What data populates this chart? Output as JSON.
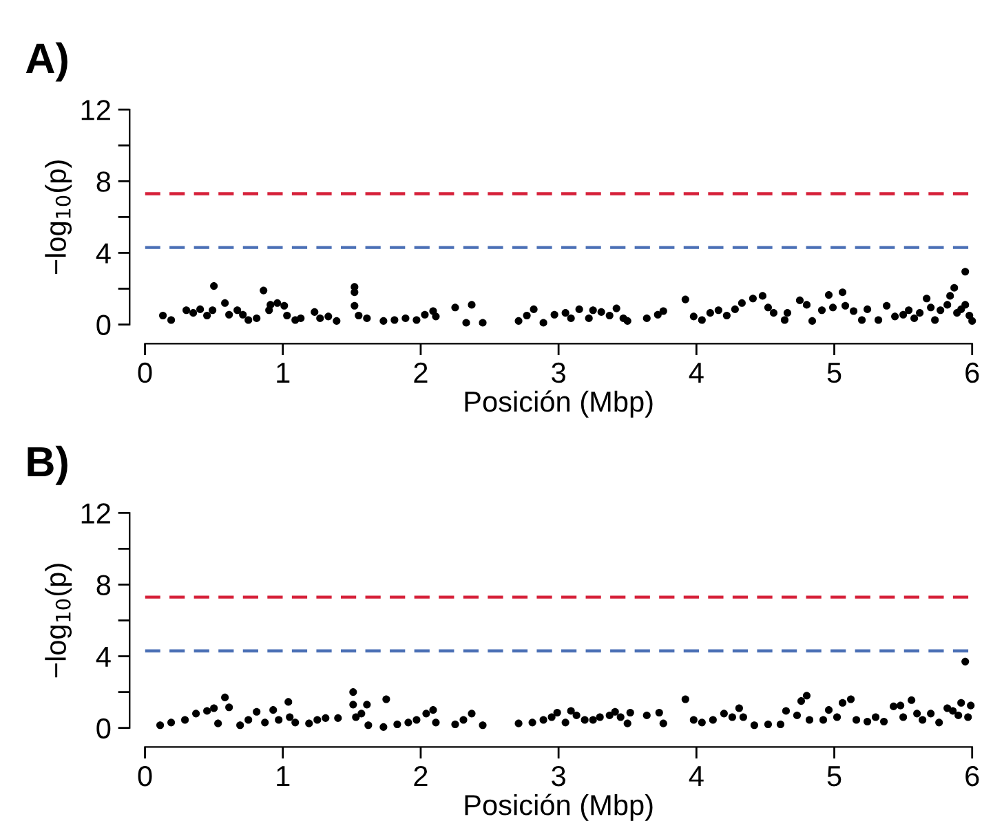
{
  "chart_data": [
    {
      "type": "scatter",
      "title": "A)",
      "xlabel": "Posición (Mbp)",
      "ylabel": "−log$_{10}$(p)",
      "xlim": [
        0,
        6
      ],
      "ylim": [
        0,
        12
      ],
      "xticks": [
        0,
        1,
        2,
        3,
        4,
        5,
        6
      ],
      "yticks": [
        0,
        {
          "value": 2,
          "label": null
        },
        4,
        {
          "value": 6,
          "label": null
        },
        8,
        {
          "value": 10,
          "label": null
        },
        12
      ],
      "grid": false,
      "legend": false,
      "marker": "circle",
      "ref_lines": [
        {
          "axis": "y",
          "value": 7.3,
          "color": "#d6213a",
          "line_style": "dashed"
        },
        {
          "axis": "y",
          "value": 4.3,
          "color": "#4a6fb5",
          "line_style": "dashed"
        }
      ],
      "series": [
        {
          "color": "#000000",
          "x": [
            0.13,
            0.19,
            0.3,
            0.35,
            0.4,
            0.45,
            0.5,
            0.49,
            0.58,
            0.61,
            0.67,
            0.71,
            0.75,
            0.81,
            0.86,
            0.9,
            0.91,
            0.96,
            1.01,
            1.03,
            1.09,
            1.13,
            1.23,
            1.27,
            1.33,
            1.39,
            1.52,
            1.52,
            1.52,
            1.55,
            1.61,
            1.73,
            1.81,
            1.89,
            1.97,
            2.03,
            2.09,
            2.11,
            2.25,
            2.33,
            2.37,
            2.45,
            2.71,
            2.77,
            2.82,
            2.89,
            2.97,
            3.05,
            3.09,
            3.15,
            3.22,
            3.25,
            3.31,
            3.37,
            3.42,
            3.47,
            3.5,
            3.64,
            3.72,
            3.76,
            3.92,
            3.98,
            4.04,
            4.1,
            4.16,
            4.22,
            4.28,
            4.33,
            4.41,
            4.48,
            4.52,
            4.56,
            4.64,
            4.66,
            4.75,
            4.8,
            4.84,
            4.91,
            4.96,
            4.99,
            5.06,
            5.08,
            5.14,
            5.2,
            5.24,
            5.32,
            5.38,
            5.44,
            5.5,
            5.54,
            5.58,
            5.62,
            5.67,
            5.7,
            5.73,
            5.77,
            5.82,
            5.84,
            5.87,
            5.89,
            5.92,
            5.95,
            5.95,
            5.98,
            6.0
          ],
          "values": [
            0.5,
            0.25,
            0.8,
            0.65,
            0.85,
            0.5,
            2.15,
            0.8,
            1.2,
            0.55,
            0.8,
            0.55,
            0.25,
            0.35,
            1.9,
            0.8,
            1.1,
            1.2,
            1.05,
            0.5,
            0.25,
            0.35,
            0.7,
            0.35,
            0.45,
            0.2,
            2.1,
            1.8,
            1.05,
            0.5,
            0.35,
            0.2,
            0.25,
            0.35,
            0.25,
            0.55,
            0.75,
            0.45,
            0.95,
            0.1,
            1.1,
            0.1,
            0.2,
            0.5,
            0.85,
            0.1,
            0.55,
            0.65,
            0.35,
            0.85,
            0.35,
            0.8,
            0.7,
            0.5,
            0.9,
            0.35,
            0.2,
            0.35,
            0.55,
            0.75,
            1.4,
            0.45,
            0.25,
            0.65,
            0.8,
            0.5,
            0.85,
            1.2,
            1.45,
            1.6,
            0.95,
            0.65,
            0.25,
            0.65,
            1.35,
            1.1,
            0.2,
            0.8,
            1.65,
            0.95,
            1.8,
            1.05,
            0.75,
            0.25,
            0.85,
            0.25,
            1.05,
            0.45,
            0.55,
            0.8,
            0.35,
            0.65,
            1.45,
            0.95,
            0.25,
            0.8,
            1.1,
            1.6,
            2.05,
            0.65,
            0.85,
            2.95,
            1.1,
            0.5,
            0.2
          ]
        }
      ]
    },
    {
      "type": "scatter",
      "title": "B)",
      "xlabel": "Posición (Mbp)",
      "ylabel": "−log$_{10}$(p)",
      "xlim": [
        0,
        6
      ],
      "ylim": [
        0,
        12
      ],
      "xticks": [
        0,
        1,
        2,
        3,
        4,
        5,
        6
      ],
      "yticks": [
        0,
        {
          "value": 2,
          "label": null
        },
        4,
        {
          "value": 6,
          "label": null
        },
        8,
        {
          "value": 10,
          "label": null
        },
        12
      ],
      "grid": false,
      "legend": false,
      "marker": "circle",
      "ref_lines": [
        {
          "axis": "y",
          "value": 7.3,
          "color": "#d6213a",
          "line_style": "dashed"
        },
        {
          "axis": "y",
          "value": 4.3,
          "color": "#4a6fb5",
          "line_style": "dashed"
        }
      ],
      "series": [
        {
          "color": "#000000",
          "x": [
            0.11,
            0.19,
            0.29,
            0.37,
            0.45,
            0.5,
            0.53,
            0.58,
            0.61,
            0.69,
            0.75,
            0.81,
            0.87,
            0.93,
            0.97,
            1.04,
            1.05,
            1.09,
            1.19,
            1.25,
            1.31,
            1.4,
            1.51,
            1.51,
            1.53,
            1.57,
            1.61,
            1.62,
            1.75,
            1.73,
            1.83,
            1.91,
            1.97,
            2.04,
            2.09,
            2.11,
            2.25,
            2.31,
            2.37,
            2.45,
            2.71,
            2.81,
            2.89,
            2.95,
            2.99,
            3.05,
            3.09,
            3.13,
            3.19,
            3.25,
            3.3,
            3.37,
            3.41,
            3.45,
            3.52,
            3.5,
            3.64,
            3.73,
            3.76,
            3.92,
            3.98,
            4.04,
            4.12,
            4.2,
            4.26,
            4.31,
            4.34,
            4.42,
            4.52,
            4.61,
            4.65,
            4.73,
            4.76,
            4.8,
            4.82,
            4.92,
            4.96,
            5.02,
            5.06,
            5.12,
            5.16,
            5.24,
            5.3,
            5.36,
            5.43,
            5.48,
            5.5,
            5.56,
            5.6,
            5.64,
            5.7,
            5.76,
            5.82,
            5.86,
            5.9,
            5.92,
            5.95,
            5.97,
            5.99
          ],
          "values": [
            0.15,
            0.3,
            0.45,
            0.8,
            0.95,
            1.1,
            0.25,
            1.7,
            1.15,
            0.15,
            0.45,
            0.9,
            0.3,
            1.0,
            0.45,
            1.45,
            0.6,
            0.3,
            0.25,
            0.45,
            0.55,
            0.55,
            2.0,
            1.3,
            0.6,
            0.8,
            1.3,
            0.15,
            1.6,
            0.05,
            0.2,
            0.3,
            0.45,
            0.8,
            1.0,
            0.3,
            0.2,
            0.45,
            0.8,
            0.15,
            0.25,
            0.3,
            0.45,
            0.6,
            0.85,
            0.3,
            0.95,
            0.7,
            0.45,
            0.45,
            0.6,
            0.7,
            0.9,
            0.6,
            0.85,
            0.25,
            0.7,
            0.85,
            0.25,
            1.6,
            0.45,
            0.3,
            0.45,
            0.8,
            0.6,
            1.1,
            0.6,
            0.15,
            0.2,
            0.2,
            0.95,
            0.7,
            1.5,
            1.8,
            0.45,
            0.45,
            1.0,
            0.6,
            1.4,
            1.6,
            0.45,
            0.35,
            0.6,
            0.35,
            1.2,
            1.25,
            0.6,
            1.55,
            0.8,
            0.45,
            0.8,
            0.3,
            1.1,
            0.95,
            0.7,
            1.4,
            3.7,
            0.6,
            1.25
          ]
        }
      ]
    }
  ]
}
